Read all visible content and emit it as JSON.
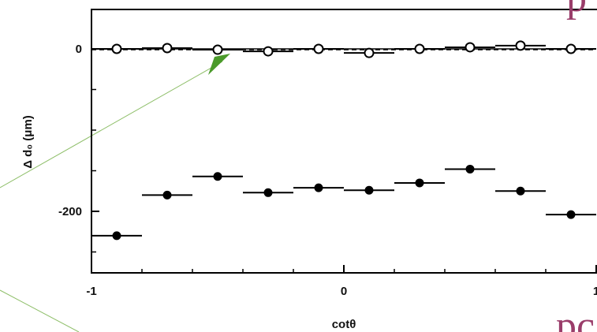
{
  "chart_data": {
    "type": "scatter",
    "xlabel": "cotθ",
    "ylabel": "Δ d₀ (μm)",
    "xlim": [
      -1,
      1
    ],
    "ylim": [
      -270,
      50
    ],
    "x_ticks": [
      -1,
      0,
      1
    ],
    "x_tick_labels": [
      "-1",
      "0",
      "1"
    ],
    "y_ticks": [
      0,
      -200
    ],
    "y_tick_labels": [
      "0",
      "-200"
    ],
    "grid": false,
    "series": [
      {
        "marker": "open-circle",
        "x": [
          -0.9,
          -0.7,
          -0.5,
          -0.3,
          -0.1,
          0.1,
          0.3,
          0.5,
          0.7,
          0.9
        ],
        "y": [
          0,
          1,
          -1,
          -3,
          0,
          -5,
          0,
          2,
          4,
          0
        ],
        "xerr": 0.1
      },
      {
        "marker": "filled-circle",
        "x": [
          -0.9,
          -0.7,
          -0.5,
          -0.3,
          -0.1,
          0.1,
          0.3,
          0.5,
          0.7,
          0.9
        ],
        "y": [
          -230,
          -180,
          -157,
          -177,
          -171,
          -174,
          -165,
          -148,
          -175,
          -204
        ],
        "xerr": 0.1
      }
    ],
    "reference_lines": [
      {
        "style": "solid",
        "y": 0
      },
      {
        "style": "dashed",
        "y": -1
      }
    ],
    "colors": {
      "axis": "#000000",
      "marker": "#000000",
      "arrow": "#4a9a2a",
      "pointer_line": "#8fbf6a",
      "decor_text": "#9a3d6a"
    }
  },
  "decor": {
    "bottom_right_text": "pc",
    "top_right_text": "p"
  }
}
